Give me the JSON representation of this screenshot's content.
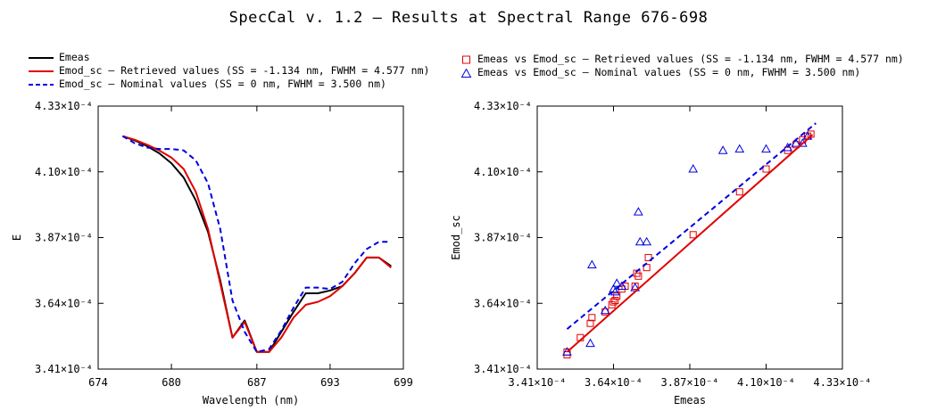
{
  "title": "SpecCal v. 1.2 – Results at Spectral Range 676-698",
  "legend_left": [
    {
      "label": "Emeas",
      "color": "#000000",
      "style": "solid"
    },
    {
      "label": "Emod_sc – Retrieved values (SS = -1.134 nm, FWHM =  4.577 nm)",
      "color": "#e00000",
      "style": "solid"
    },
    {
      "label": "Emod_sc – Nominal values (SS = 0 nm, FWHM =  3.500 nm)",
      "color": "#0000e0",
      "style": "dashed"
    }
  ],
  "legend_right": [
    {
      "label": "Emeas vs Emod_sc – Retrieved values (SS = -1.134 nm, FWHM =  4.577 nm)",
      "color": "#e00000",
      "marker": "square"
    },
    {
      "label": "Emeas vs Emod_sc – Nominal values (SS = 0 nm, FWHM =  3.500 nm)",
      "color": "#0000e0",
      "marker": "triangle"
    }
  ],
  "chart_data": [
    {
      "type": "line",
      "xlabel": "Wavelength (nm)",
      "ylabel": "E",
      "xlim": [
        674,
        699
      ],
      "ylim": [
        0.000341,
        0.000433
      ],
      "xticks": [
        674,
        680,
        687,
        693,
        699
      ],
      "xtick_labels": [
        "674",
        "680",
        "687",
        "693",
        "699"
      ],
      "yticks": [
        0.000341,
        0.000364,
        0.000387,
        0.00041,
        0.000433
      ],
      "ytick_labels": [
        "3.41×10⁻⁴",
        "3.64×10⁻⁴",
        "3.87×10⁻⁴",
        "4.10×10⁻⁴",
        "4.33×10⁻⁴"
      ],
      "series": [
        {
          "name": "Emeas",
          "color": "#000000",
          "dash": false,
          "x": [
            676,
            677,
            678,
            679,
            680,
            681,
            682,
            683,
            684,
            685,
            686,
            687,
            688,
            689,
            690,
            691,
            692,
            693,
            694,
            695,
            696,
            697,
            698
          ],
          "y": [
            0.0004225,
            0.000421,
            0.000419,
            0.0004165,
            0.000413,
            0.000408,
            0.0004,
            0.000389,
            0.000372,
            0.000352,
            0.000358,
            0.000347,
            0.000347,
            0.000354,
            0.000361,
            0.0003675,
            0.0003675,
            0.0003685,
            0.00037,
            0.0003745,
            0.00038,
            0.00038,
            0.000377
          ]
        },
        {
          "name": "Emod_sc – Retrieved values",
          "color": "#e00000",
          "dash": false,
          "x": [
            676,
            677,
            678,
            679,
            680,
            681,
            682,
            683,
            684,
            685,
            686,
            687,
            688,
            689,
            690,
            691,
            692,
            693,
            694,
            695,
            696,
            697,
            698
          ],
          "y": [
            0.0004225,
            0.0004212,
            0.0004195,
            0.0004175,
            0.000415,
            0.000411,
            0.000403,
            0.00039,
            0.000371,
            0.000352,
            0.0003575,
            0.000347,
            0.000347,
            0.000352,
            0.000359,
            0.0003635,
            0.0003645,
            0.0003665,
            0.00037,
            0.0003745,
            0.00038,
            0.00038,
            0.0003765
          ]
        },
        {
          "name": "Emod_sc – Nominal values",
          "color": "#0000e0",
          "dash": true,
          "x": [
            676,
            677,
            678,
            679,
            680,
            681,
            682,
            683,
            684,
            685,
            686,
            687,
            688,
            689,
            690,
            691,
            692,
            693,
            694,
            695,
            696,
            697,
            698
          ],
          "y": [
            0.0004225,
            0.00042,
            0.0004185,
            0.000418,
            0.000418,
            0.0004175,
            0.000414,
            0.000406,
            0.00039,
            0.000365,
            0.000354,
            0.000347,
            0.000348,
            0.0003545,
            0.0003625,
            0.0003695,
            0.0003695,
            0.000369,
            0.0003715,
            0.000378,
            0.000383,
            0.0003855,
            0.0003855
          ]
        }
      ]
    },
    {
      "type": "scatter",
      "xlabel": "Emeas",
      "ylabel": "Emod_sc",
      "xlim": [
        0.000341,
        0.000433
      ],
      "ylim": [
        0.000341,
        0.000433
      ],
      "xticks": [
        0.000341,
        0.000364,
        0.000387,
        0.00041,
        0.000433
      ],
      "xtick_labels": [
        "3.41×10⁻⁴",
        "3.64×10⁻⁴",
        "3.87×10⁻⁴",
        "4.10×10⁻⁴",
        "4.33×10⁻⁴"
      ],
      "yticks": [
        0.000341,
        0.000364,
        0.000387,
        0.00041,
        0.000433
      ],
      "ytick_labels": [
        "3.41×10⁻⁴",
        "3.64×10⁻⁴",
        "3.87×10⁻⁴",
        "4.10×10⁻⁴",
        "4.33×10⁻⁴"
      ],
      "series": [
        {
          "name": "Emeas vs Emod_sc – Retrieved values",
          "color": "#e00000",
          "marker": "square",
          "x": [
            0.00035,
            0.00035,
            0.000354,
            0.000357,
            0.0003575,
            0.0003615,
            0.0003635,
            0.000364,
            0.0003645,
            0.000365,
            0.0003665,
            0.0003675,
            0.0003705,
            0.000371,
            0.0003715,
            0.000374,
            0.0003745,
            0.000388,
            0.000402,
            0.00041,
            0.0004165,
            0.000419,
            0.000421,
            0.0004225,
            0.0004235
          ],
          "y": [
            0.000347,
            0.000346,
            0.000352,
            0.000357,
            0.000359,
            0.000361,
            0.0003635,
            0.0003645,
            0.000365,
            0.0003665,
            0.000369,
            0.00037,
            0.00037,
            0.0003745,
            0.0003735,
            0.0003765,
            0.00038,
            0.000388,
            0.000403,
            0.000411,
            0.0004175,
            0.0004195,
            0.0004212,
            0.0004225,
            0.0004232
          ]
        },
        {
          "name": "Emeas vs Emod_sc – Nominal values",
          "color": "#0000e0",
          "marker": "triangle",
          "x": [
            0.00035,
            0.000357,
            0.0003575,
            0.0003615,
            0.000364,
            0.0003645,
            0.000365,
            0.0003665,
            0.0003705,
            0.0003715,
            0.000372,
            0.000374,
            0.000388,
            0.000397,
            0.000402,
            0.00041,
            0.0004165,
            0.000419,
            0.000421,
            0.0004225
          ],
          "y": [
            0.000347,
            0.00035,
            0.0003775,
            0.0003615,
            0.000369,
            0.000368,
            0.000371,
            0.00037,
            0.0003695,
            0.000396,
            0.0003855,
            0.0003855,
            0.000411,
            0.0004175,
            0.000418,
            0.000418,
            0.0004185,
            0.00042,
            0.00042,
            0.0004225
          ]
        },
        {
          "name": "Retrieved fit",
          "color": "#e00000",
          "dash": false,
          "line": true,
          "x": [
            0.00035,
            0.000424
          ],
          "y": [
            0.000347,
            0.000423
          ]
        },
        {
          "name": "Nominal fit",
          "color": "#0000e0",
          "dash": true,
          "line": true,
          "x": [
            0.00035,
            0.000425
          ],
          "y": [
            0.000355,
            0.000427
          ]
        }
      ]
    }
  ]
}
